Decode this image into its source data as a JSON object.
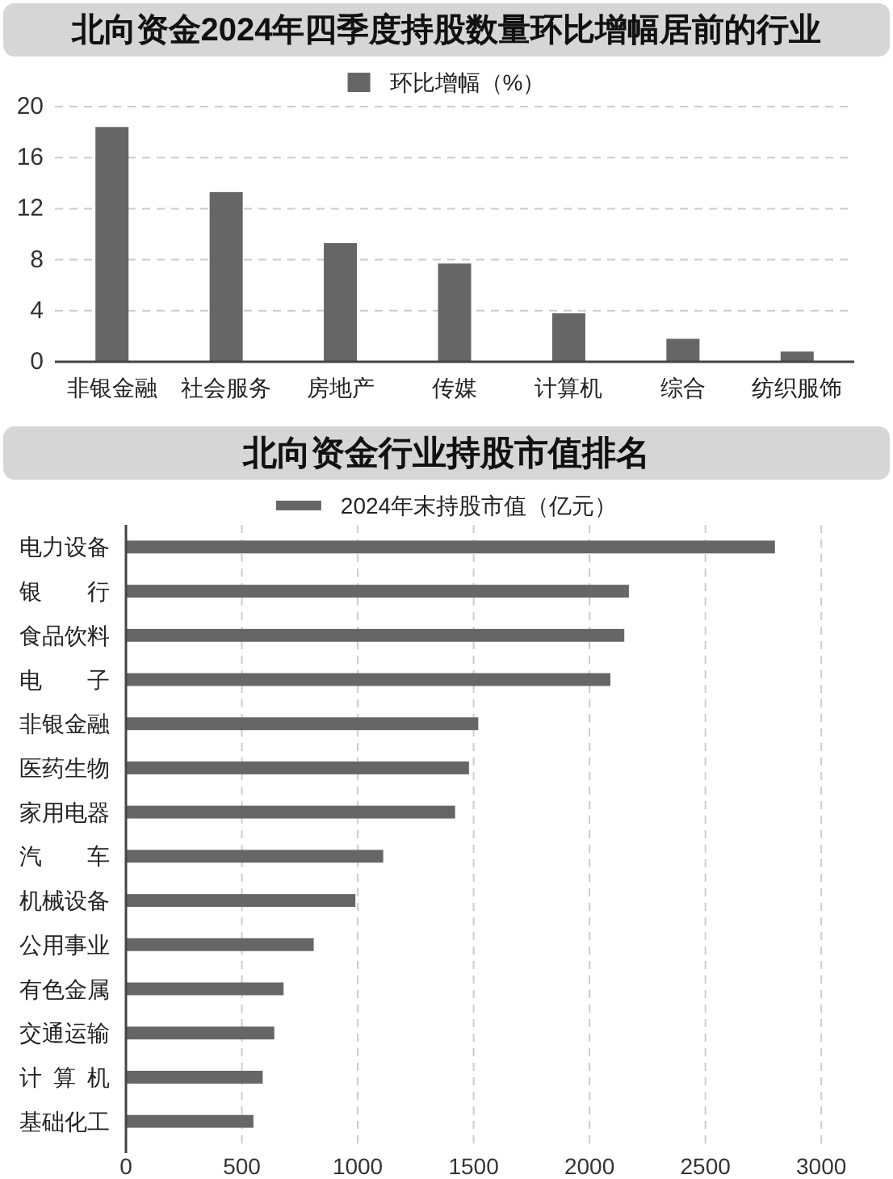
{
  "chart_data": [
    {
      "type": "bar",
      "title": "北向资金2024年四季度持股数量环比增幅居前的行业",
      "categories": [
        "非银金融",
        "社会服务",
        "房地产",
        "传媒",
        "计算机",
        "综合",
        "纺织服饰"
      ],
      "series": [
        {
          "name": "环比增幅（%）",
          "color": "#666666",
          "values": [
            18.4,
            13.3,
            9.3,
            7.7,
            3.8,
            1.8,
            0.8
          ]
        }
      ],
      "ylim": [
        0,
        20
      ],
      "yticks": [
        0,
        4,
        8,
        12,
        16,
        20
      ],
      "grid": "y",
      "legend": "top"
    },
    {
      "type": "bar",
      "orientation": "horizontal",
      "title": "北向资金行业持股市值排名",
      "categories": [
        "电力设备",
        "银行",
        "食品饮料",
        "电子",
        "非银金融",
        "医药生物",
        "家用电器",
        "汽车",
        "机械设备",
        "公用事业",
        "有色金属",
        "交通运输",
        "计算机",
        "基础化工"
      ],
      "series": [
        {
          "name": "2024年末持股市值（亿元）",
          "color": "#666666",
          "values": [
            2800,
            2170,
            2150,
            2090,
            1520,
            1480,
            1420,
            1110,
            990,
            810,
            680,
            640,
            590,
            550
          ]
        }
      ],
      "xlim": [
        0,
        3000
      ],
      "xticks": [
        0,
        500,
        1000,
        1500,
        2000,
        2500,
        3000
      ],
      "grid": "x",
      "legend": "top"
    }
  ]
}
